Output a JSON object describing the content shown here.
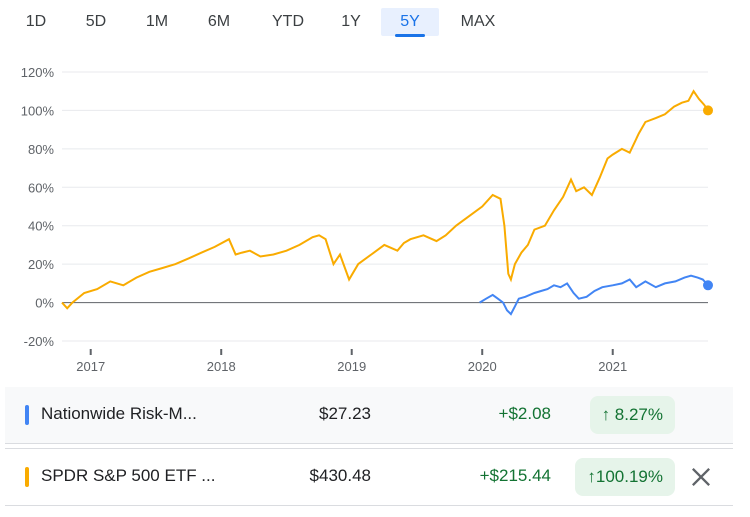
{
  "tabs": [
    {
      "label": "1D",
      "active": false
    },
    {
      "label": "5D",
      "active": false
    },
    {
      "label": "1M",
      "active": false
    },
    {
      "label": "6M",
      "active": false
    },
    {
      "label": "YTD",
      "active": false
    },
    {
      "label": "1Y",
      "active": false
    },
    {
      "label": "5Y",
      "active": true
    },
    {
      "label": "MAX",
      "active": false
    }
  ],
  "colors": {
    "spy": "#f9ab00",
    "nationwide": "#4285f4",
    "positive": "#137333"
  },
  "chart_data": {
    "type": "line",
    "title": "",
    "xlabel": "",
    "ylabel": "",
    "x_ticks": [
      "2017",
      "2018",
      "2019",
      "2020",
      "2021"
    ],
    "y_ticks": [
      "120%",
      "100%",
      "80%",
      "60%",
      "40%",
      "20%",
      "0%",
      "-20%"
    ],
    "ylim": [
      -20,
      120
    ],
    "xlim": [
      2016.78,
      2021.73
    ],
    "grid": true,
    "series": [
      {
        "name": "SPDR S&P 500 ETF",
        "color": "#f9ab00",
        "points": [
          [
            2016.78,
            0
          ],
          [
            2016.82,
            -3
          ],
          [
            2016.86,
            0
          ],
          [
            2016.95,
            5
          ],
          [
            2017.05,
            7
          ],
          [
            2017.15,
            11
          ],
          [
            2017.25,
            9
          ],
          [
            2017.35,
            13
          ],
          [
            2017.45,
            16
          ],
          [
            2017.55,
            18
          ],
          [
            2017.65,
            20
          ],
          [
            2017.75,
            23
          ],
          [
            2017.85,
            26
          ],
          [
            2017.95,
            29
          ],
          [
            2018.06,
            33
          ],
          [
            2018.11,
            25
          ],
          [
            2018.16,
            26
          ],
          [
            2018.22,
            27
          ],
          [
            2018.3,
            24
          ],
          [
            2018.4,
            25
          ],
          [
            2018.5,
            27
          ],
          [
            2018.6,
            30
          ],
          [
            2018.7,
            34
          ],
          [
            2018.75,
            35
          ],
          [
            2018.8,
            33
          ],
          [
            2018.86,
            20
          ],
          [
            2018.91,
            25
          ],
          [
            2018.98,
            12
          ],
          [
            2019.05,
            20
          ],
          [
            2019.15,
            25
          ],
          [
            2019.25,
            30
          ],
          [
            2019.35,
            27
          ],
          [
            2019.4,
            31
          ],
          [
            2019.45,
            33
          ],
          [
            2019.55,
            35
          ],
          [
            2019.65,
            32
          ],
          [
            2019.72,
            35
          ],
          [
            2019.8,
            40
          ],
          [
            2019.9,
            45
          ],
          [
            2020.0,
            50
          ],
          [
            2020.08,
            56
          ],
          [
            2020.14,
            54
          ],
          [
            2020.17,
            40
          ],
          [
            2020.2,
            15
          ],
          [
            2020.22,
            12
          ],
          [
            2020.25,
            20
          ],
          [
            2020.3,
            26
          ],
          [
            2020.35,
            30
          ],
          [
            2020.4,
            38
          ],
          [
            2020.48,
            40
          ],
          [
            2020.55,
            48
          ],
          [
            2020.62,
            55
          ],
          [
            2020.68,
            64
          ],
          [
            2020.72,
            58
          ],
          [
            2020.78,
            60
          ],
          [
            2020.84,
            56
          ],
          [
            2020.9,
            65
          ],
          [
            2020.96,
            75
          ],
          [
            2021.0,
            77
          ],
          [
            2021.07,
            80
          ],
          [
            2021.13,
            78
          ],
          [
            2021.2,
            88
          ],
          [
            2021.25,
            94
          ],
          [
            2021.33,
            96
          ],
          [
            2021.4,
            98
          ],
          [
            2021.47,
            102
          ],
          [
            2021.53,
            104
          ],
          [
            2021.58,
            105
          ],
          [
            2021.62,
            110
          ],
          [
            2021.66,
            106
          ],
          [
            2021.7,
            103
          ],
          [
            2021.73,
            100
          ]
        ]
      },
      {
        "name": "Nationwide Risk-Managed",
        "color": "#4285f4",
        "points": [
          [
            2019.98,
            0
          ],
          [
            2020.03,
            2
          ],
          [
            2020.08,
            4
          ],
          [
            2020.12,
            2
          ],
          [
            2020.16,
            0
          ],
          [
            2020.19,
            -4
          ],
          [
            2020.22,
            -6
          ],
          [
            2020.25,
            -2
          ],
          [
            2020.28,
            2
          ],
          [
            2020.33,
            3
          ],
          [
            2020.4,
            5
          ],
          [
            2020.45,
            6
          ],
          [
            2020.5,
            7
          ],
          [
            2020.55,
            9
          ],
          [
            2020.6,
            8
          ],
          [
            2020.65,
            10
          ],
          [
            2020.7,
            5
          ],
          [
            2020.74,
            2
          ],
          [
            2020.8,
            3
          ],
          [
            2020.86,
            6
          ],
          [
            2020.92,
            8
          ],
          [
            2021.0,
            9
          ],
          [
            2021.07,
            10
          ],
          [
            2021.13,
            12
          ],
          [
            2021.18,
            8
          ],
          [
            2021.25,
            11
          ],
          [
            2021.33,
            8
          ],
          [
            2021.4,
            10
          ],
          [
            2021.48,
            11
          ],
          [
            2021.55,
            13
          ],
          [
            2021.6,
            14
          ],
          [
            2021.65,
            13
          ],
          [
            2021.69,
            12
          ],
          [
            2021.73,
            9
          ]
        ]
      }
    ]
  },
  "rows": [
    {
      "name": "Nationwide Risk-M...",
      "price": "$27.23",
      "change": "+$2.08",
      "percent": "8.27%",
      "color": "#4285f4",
      "removable": false
    },
    {
      "name": "SPDR S&P 500 ETF ...",
      "price": "$430.48",
      "change": "+$215.44",
      "percent": "100.19%",
      "color": "#f9ab00",
      "removable": true
    }
  ]
}
